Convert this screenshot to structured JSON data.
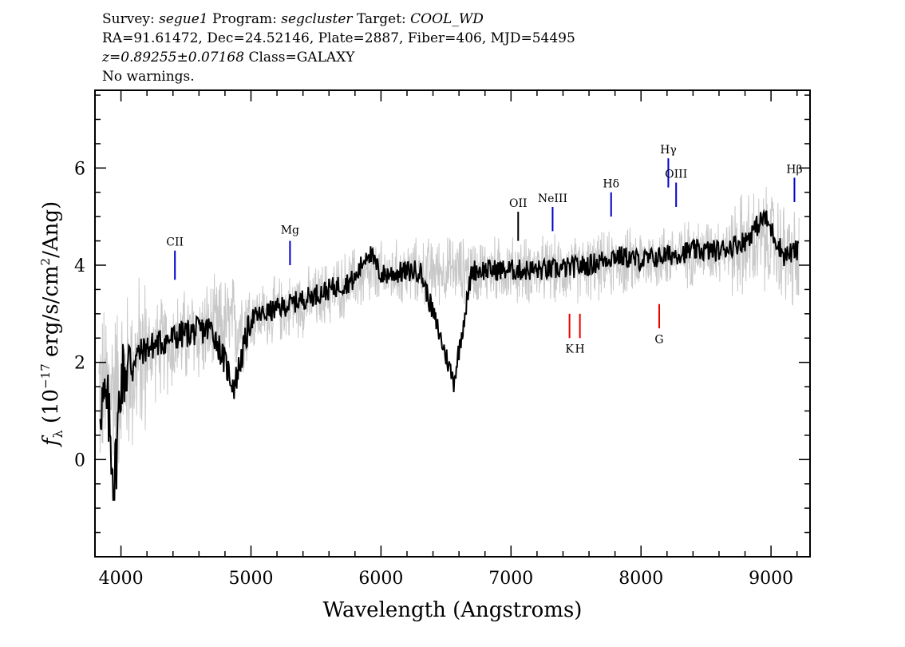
{
  "header": {
    "line1": {
      "survey_prefix": "Survey: ",
      "survey": "segue1",
      "program_prefix": " Program: ",
      "program": "segcluster",
      "target_prefix": " Target: ",
      "target": "COOL_WD"
    },
    "line2": "RA=91.61472, Dec=24.52146, Plate=2887, Fiber=406, MJD=54495",
    "line3": {
      "redshift": "z=0.89255±0.07168",
      "class": " Class=GALAXY"
    },
    "line4": "No warnings."
  },
  "chart_data": {
    "type": "line",
    "xlabel": "Wavelength (Angstroms)",
    "ylabel": "f_λ (10^-17 erg/s/cm^2/Ang)",
    "xlim": [
      3800,
      9300
    ],
    "ylim": [
      -2,
      7.6
    ],
    "x_ticks": [
      "4000",
      "5000",
      "6000",
      "7000",
      "8000",
      "9000"
    ],
    "y_ticks": [
      "0",
      "2",
      "4",
      "6"
    ],
    "series": [
      {
        "role": "raw spectrum",
        "color": "#c8c8c8",
        "smoothed_trend": [
          {
            "x": 3850,
            "y": 1.4
          },
          {
            "x": 4000,
            "y": 1.6
          },
          {
            "x": 4200,
            "y": 2.2
          },
          {
            "x": 4500,
            "y": 2.5
          },
          {
            "x": 5000,
            "y": 2.9
          },
          {
            "x": 5500,
            "y": 3.3
          },
          {
            "x": 5800,
            "y": 3.7
          },
          {
            "x": 6000,
            "y": 3.8
          },
          {
            "x": 6500,
            "y": 3.9
          },
          {
            "x": 7000,
            "y": 3.9
          },
          {
            "x": 7500,
            "y": 3.9
          },
          {
            "x": 8000,
            "y": 4.1
          },
          {
            "x": 8500,
            "y": 4.3
          },
          {
            "x": 9000,
            "y": 4.5
          },
          {
            "x": 9200,
            "y": 4.0
          }
        ]
      },
      {
        "role": "smoothed spectrum",
        "color": "#000000",
        "points": [
          {
            "x": 3850,
            "y": 1.2
          },
          {
            "x": 3900,
            "y": 1.0
          },
          {
            "x": 3950,
            "y": -0.5
          },
          {
            "x": 4000,
            "y": 1.7
          },
          {
            "x": 4100,
            "y": 2.1
          },
          {
            "x": 4200,
            "y": 2.3
          },
          {
            "x": 4300,
            "y": 2.4
          },
          {
            "x": 4400,
            "y": 2.5
          },
          {
            "x": 4500,
            "y": 2.6
          },
          {
            "x": 4700,
            "y": 2.7
          },
          {
            "x": 4870,
            "y": 1.5
          },
          {
            "x": 5000,
            "y": 2.9
          },
          {
            "x": 5200,
            "y": 3.1
          },
          {
            "x": 5400,
            "y": 3.3
          },
          {
            "x": 5600,
            "y": 3.5
          },
          {
            "x": 5800,
            "y": 3.7
          },
          {
            "x": 5900,
            "y": 4.3
          },
          {
            "x": 6000,
            "y": 3.8
          },
          {
            "x": 6300,
            "y": 3.9
          },
          {
            "x": 6560,
            "y": 1.6
          },
          {
            "x": 6700,
            "y": 3.9
          },
          {
            "x": 7000,
            "y": 3.9
          },
          {
            "x": 7300,
            "y": 3.9
          },
          {
            "x": 7600,
            "y": 4.0
          },
          {
            "x": 7800,
            "y": 4.2
          },
          {
            "x": 8000,
            "y": 4.1
          },
          {
            "x": 8200,
            "y": 4.2
          },
          {
            "x": 8400,
            "y": 4.3
          },
          {
            "x": 8600,
            "y": 4.3
          },
          {
            "x": 8800,
            "y": 4.5
          },
          {
            "x": 8950,
            "y": 5.0
          },
          {
            "x": 9100,
            "y": 4.2
          },
          {
            "x": 9200,
            "y": 4.3
          }
        ]
      }
    ],
    "line_markers": [
      {
        "label": "CII",
        "wavelength": 4415,
        "color": "blue",
        "y_range": [
          3.7,
          4.3
        ],
        "label_y": 4.4
      },
      {
        "label": "Mg",
        "wavelength": 5300,
        "color": "blue",
        "y_range": [
          4.0,
          4.5
        ],
        "label_y": 4.65
      },
      {
        "label": "OII",
        "wavelength": 7055,
        "color": "black",
        "y_range": [
          4.5,
          5.1
        ],
        "label_y": 5.2
      },
      {
        "label": "NeIII",
        "wavelength": 7320,
        "color": "blue",
        "y_range": [
          4.7,
          5.2
        ],
        "label_y": 5.3
      },
      {
        "label": "Hδ",
        "wavelength": 7770,
        "color": "blue",
        "y_range": [
          5.0,
          5.5
        ],
        "label_y": 5.6
      },
      {
        "label": "Hγ",
        "wavelength": 8210,
        "color": "blue",
        "y_range": [
          5.6,
          6.2
        ],
        "label_y": 6.3
      },
      {
        "label": "OIII",
        "wavelength": 8270,
        "color": "blue",
        "y_range": [
          5.2,
          5.7
        ],
        "label_y": 5.8
      },
      {
        "label": "Hβ",
        "wavelength": 9180,
        "color": "blue",
        "y_range": [
          5.3,
          5.8
        ],
        "label_y": 5.9
      },
      {
        "label": "K",
        "wavelength": 7450,
        "color": "red",
        "y_range": [
          2.5,
          3.0
        ],
        "label_y": 2.2
      },
      {
        "label": "H",
        "wavelength": 7530,
        "color": "red",
        "y_range": [
          2.5,
          3.0
        ],
        "label_y": 2.2
      },
      {
        "label": "G",
        "wavelength": 8140,
        "color": "red",
        "y_range": [
          2.7,
          3.2
        ],
        "label_y": 2.4
      }
    ]
  }
}
